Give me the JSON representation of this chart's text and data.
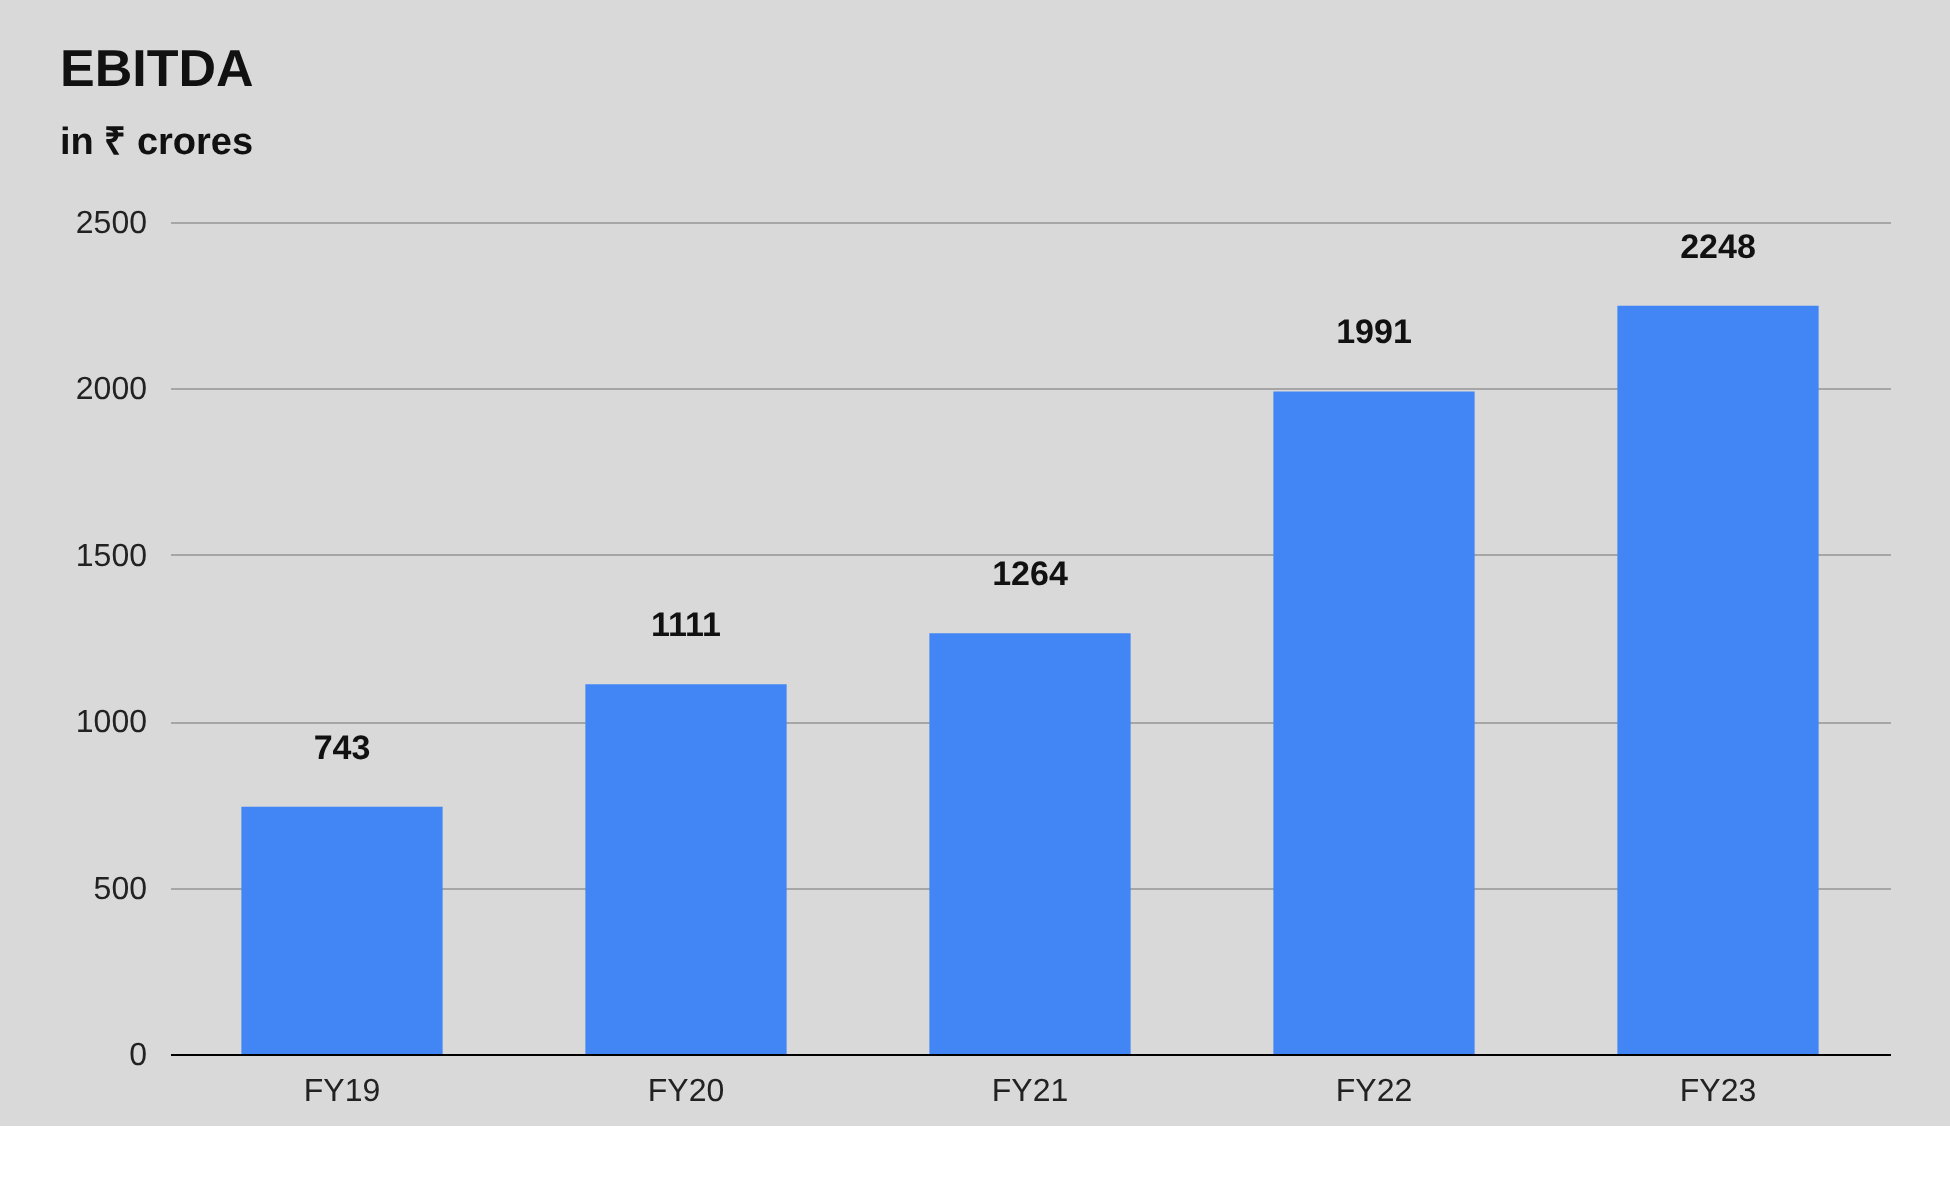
{
  "chart_data": {
    "type": "bar",
    "title": "EBITDA",
    "subtitle": "in ₹ crores",
    "categories": [
      "FY19",
      "FY20",
      "FY21",
      "FY22",
      "FY23"
    ],
    "values": [
      743,
      1111,
      1264,
      1991,
      2248
    ],
    "color": "#4285f4",
    "ylim": [
      0,
      2500
    ],
    "yticks": [
      0,
      500,
      1000,
      1500,
      2000,
      2500
    ],
    "grid": "y",
    "data_labels": true
  }
}
